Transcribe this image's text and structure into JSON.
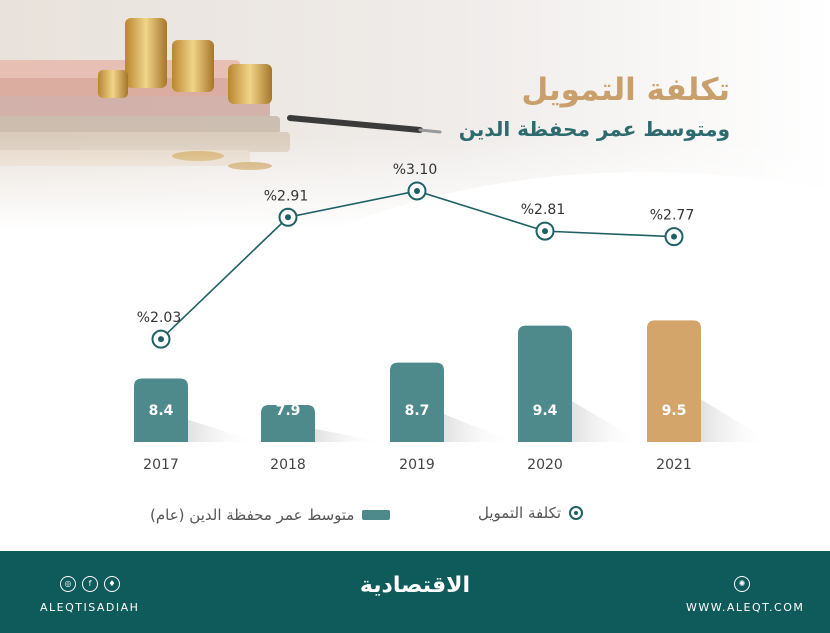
{
  "title": "تكلفة التمويل",
  "subtitle": "ومتوسط عمر محفظة الدين",
  "chart_data": {
    "type": "bar",
    "categories": [
      "2017",
      "2018",
      "2019",
      "2020",
      "2021"
    ],
    "series": [
      {
        "name": "متوسط عمر محفظة الدين (عام)",
        "type": "bar",
        "values": [
          8.4,
          7.9,
          8.7,
          9.4,
          9.5
        ],
        "labels": [
          "8.4",
          "7.9",
          "8.7",
          "9.4",
          "9.5"
        ]
      },
      {
        "name": "تكلفة التمويل",
        "type": "line",
        "values": [
          2.03,
          2.91,
          3.1,
          2.81,
          2.77
        ],
        "labels": [
          "%2.03",
          "%2.91",
          "%3.10",
          "%2.81",
          "%2.77"
        ]
      }
    ],
    "legend": {
      "position": "bottom"
    },
    "grid": false,
    "colors": {
      "bar": "#4e8a8c",
      "highlight_bar": "#d4a56b",
      "line": "#1f6064"
    }
  },
  "legend": {
    "bar_label": "متوسط عمر محفظة الدين (عام)",
    "line_label": "تكلفة التمويل"
  },
  "footer": {
    "brand": "الاقتصادية",
    "handle": "ALEQTISADIAH",
    "website": "WWW.ALEQT.COM",
    "icons": [
      "instagram-icon",
      "facebook-icon",
      "twitter-icon",
      "globe-icon"
    ]
  }
}
